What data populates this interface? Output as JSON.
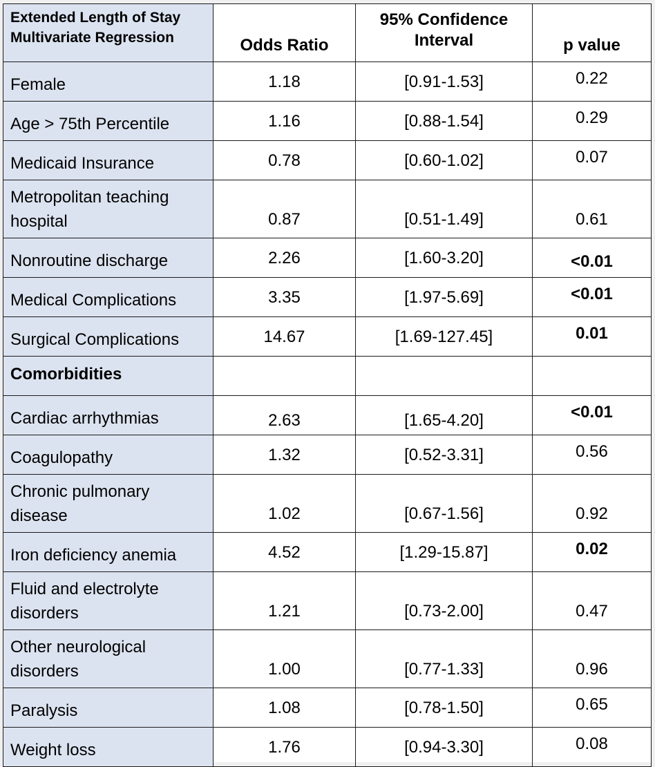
{
  "header": {
    "col1": "Extended Length of Stay Multivariate Regression",
    "col2": "Odds Ratio",
    "col3": "95% Confidence Interval",
    "col4": "p value"
  },
  "rows": [
    {
      "label": "Female",
      "or": "1.18",
      "ci": "[0.91-1.53]",
      "p": "0.22",
      "bold": false
    },
    {
      "label": "Age > 75th Percentile",
      "or": "1.16",
      "ci": "[0.88-1.54]",
      "p": "0.29",
      "bold": false
    },
    {
      "label": "Medicaid Insurance",
      "or": "0.78",
      "ci": "[0.60-1.02]",
      "p": "0.07",
      "bold": false
    },
    {
      "label": "Metropolitan teaching hospital",
      "or": "0.87",
      "ci": "[0.51-1.49]",
      "p": "0.61",
      "bold": false
    },
    {
      "label": "Nonroutine discharge",
      "or": "2.26",
      "ci": "[1.60-3.20]",
      "p": "<0.01",
      "bold": true
    },
    {
      "label": "Medical Complications",
      "or": "3.35",
      "ci": "[1.97-5.69]",
      "p": "<0.01",
      "bold": true
    },
    {
      "label": "Surgical Complications",
      "or": "14.67",
      "ci": "[1.69-127.45]",
      "p": "0.01",
      "bold": true
    },
    {
      "label": "Comorbidities",
      "or": "",
      "ci": "",
      "p": "",
      "bold": false
    },
    {
      "label": "Cardiac arrhythmias",
      "or": "2.63",
      "ci": "[1.65-4.20]",
      "p": "<0.01",
      "bold": true
    },
    {
      "label": "Coagulopathy",
      "or": "1.32",
      "ci": "[0.52-3.31]",
      "p": "0.56",
      "bold": false
    },
    {
      "label": "Chronic pulmonary disease",
      "or": "1.02",
      "ci": "[0.67-1.56]",
      "p": "0.92",
      "bold": false
    },
    {
      "label": "Iron deficiency anemia",
      "or": "4.52",
      "ci": "[1.29-15.87]",
      "p": "0.02",
      "bold": true
    },
    {
      "label": "Fluid and electrolyte disorders",
      "or": "1.21",
      "ci": "[0.73-2.00]",
      "p": "0.47",
      "bold": false
    },
    {
      "label": "Other neurological disorders",
      "or": "1.00",
      "ci": "[0.77-1.33]",
      "p": "0.96",
      "bold": false
    },
    {
      "label": "Paralysis",
      "or": "1.08",
      "ci": "[0.78-1.50]",
      "p": "0.65",
      "bold": false
    },
    {
      "label": "Weight loss",
      "or": "1.76",
      "ci": "[0.94-3.30]",
      "p": "0.08",
      "bold": false
    }
  ]
}
